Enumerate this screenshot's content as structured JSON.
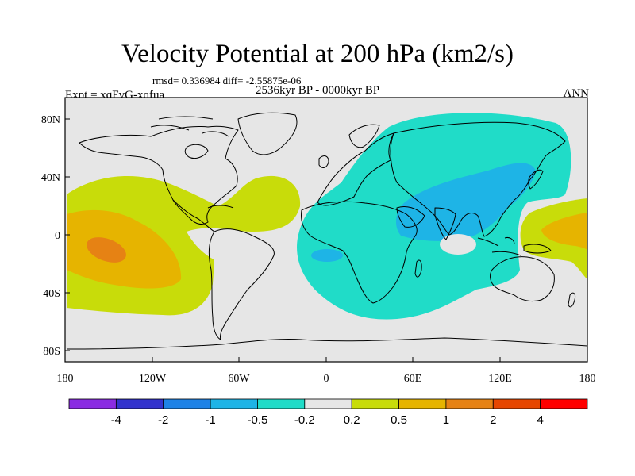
{
  "title": "Velocity Potential at 200 hPa (km2/s)",
  "stats": "rmsd= 0.336984 diff= -2.55875e-06",
  "period": "2536kyr BP - 0000kyr BP",
  "experiment": "Expt = xqFvG-xqfua",
  "season": "ANN",
  "lat_ticks": [
    "80N",
    "40N",
    "0",
    "40S",
    "80S"
  ],
  "lon_ticks": [
    "180",
    "120W",
    "60W",
    "0",
    "60E",
    "120E",
    "180"
  ],
  "colorbar": {
    "colors": [
      "#8a2be2",
      "#3232cd",
      "#1e82e6",
      "#1eb4e6",
      "#20dcc8",
      "#e6e6e6",
      "#c8dc0a",
      "#e6b400",
      "#e68214",
      "#e64600",
      "#ff0000"
    ],
    "labels": [
      "-4",
      "-2",
      "-1",
      "-0.5",
      "-0.2",
      "0.2",
      "0.5",
      "1",
      "2",
      "4"
    ]
  },
  "palette": {
    "background": "#e6e6e6",
    "cyan": "#20dcc8",
    "blue": "#1eb4e6",
    "yellow_green": "#c8dc0a",
    "orange": "#e6b400",
    "dark_orange": "#e68214",
    "coast": "#000000"
  }
}
